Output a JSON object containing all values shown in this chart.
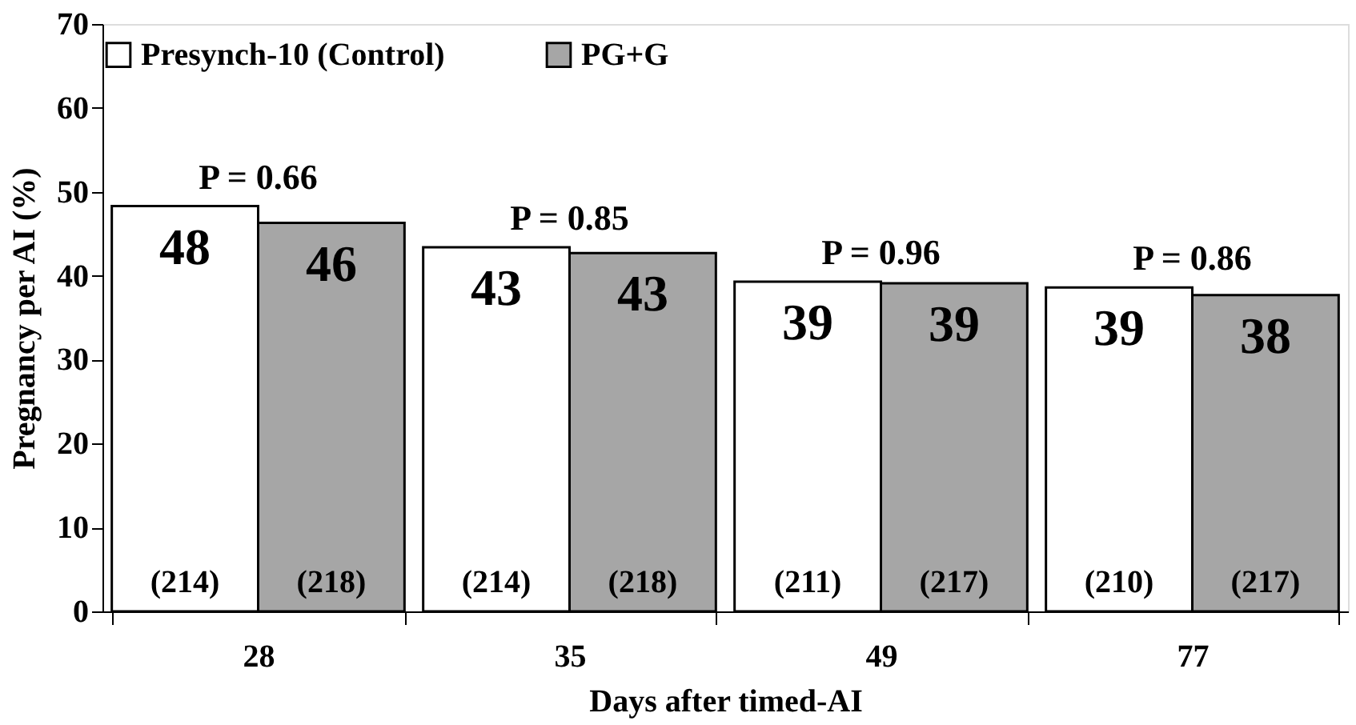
{
  "chart_data": {
    "type": "bar",
    "xlabel": "Days after timed-AI",
    "ylabel": "Pregnancy per AI (%)",
    "categories": [
      "28",
      "35",
      "49",
      "77"
    ],
    "series": [
      {
        "name": "Presynch-10 (Control)",
        "color": "#ffffff",
        "values": [
          48.3,
          43.4,
          39.3,
          38.6
        ],
        "value_labels": [
          "48",
          "43",
          "39",
          "39"
        ]
      },
      {
        "name": "PG+G",
        "color": "#a6a6a6",
        "values": [
          46.3,
          42.7,
          39.1,
          37.7
        ],
        "value_labels": [
          "46",
          "43",
          "39",
          "38"
        ]
      }
    ],
    "ylim": [
      0,
      70
    ],
    "yticks": [
      0,
      10,
      20,
      30,
      40,
      50,
      60,
      70
    ],
    "grid": false,
    "legend": "top",
    "annotations": [
      "P = 0.66",
      "P = 0.85",
      "P = 0.96",
      "P = 0.86",
      "(214)",
      "(218)",
      "(214)",
      "(218)",
      "(211)",
      "(217)",
      "(210)",
      "(217)"
    ]
  }
}
